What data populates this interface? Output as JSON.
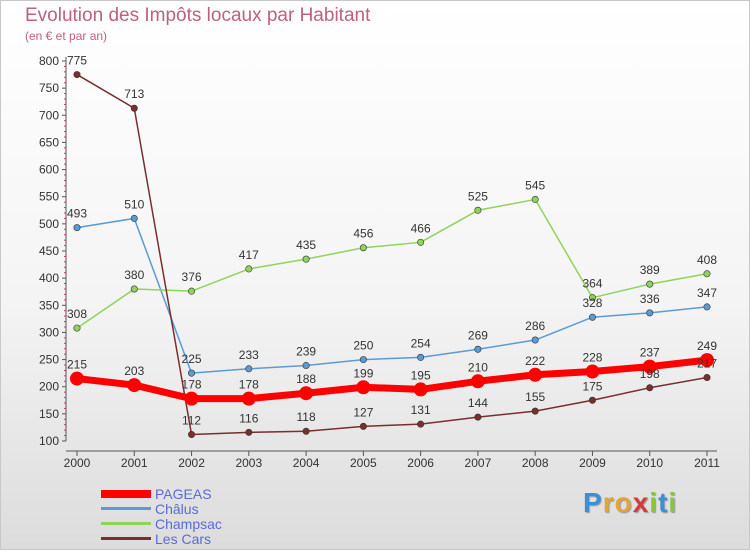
{
  "title": "Evolution des Impôts locaux par Habitant",
  "subtitle": "(en € et par an)",
  "logo_letters": [
    {
      "ch": "P",
      "color": "#3a8fd6"
    },
    {
      "ch": "r",
      "color": "#e3a33a"
    },
    {
      "ch": "o",
      "color": "#e3a33a"
    },
    {
      "ch": "x",
      "color": "#d63a3a"
    },
    {
      "ch": "i",
      "color": "#8ac43f"
    },
    {
      "ch": "t",
      "color": "#3a8fd6"
    },
    {
      "ch": "i",
      "color": "#8ac43f"
    }
  ],
  "chart_data": {
    "type": "line",
    "title": "Evolution des Impôts locaux par Habitant",
    "subtitle": "(en € et par an)",
    "xlabel": "",
    "ylabel": "",
    "x": [
      "2000",
      "2001",
      "2002",
      "2003",
      "2004",
      "2005",
      "2006",
      "2007",
      "2008",
      "2009",
      "2010",
      "2011"
    ],
    "ylim": [
      100,
      800
    ],
    "yticks": [
      100,
      150,
      200,
      250,
      300,
      350,
      400,
      450,
      500,
      550,
      600,
      650,
      700,
      750,
      800
    ],
    "legend_position": "bottom-left",
    "series": [
      {
        "name": "PAGEAS",
        "color": "#ff0000",
        "stroke": 7,
        "marker": 7,
        "values": [
          215,
          203,
          178,
          178,
          188,
          199,
          195,
          210,
          222,
          228,
          237,
          249
        ]
      },
      {
        "name": "Châlus",
        "color": "#5b9bd5",
        "stroke": 1.5,
        "marker": 3.2,
        "values": [
          493,
          510,
          225,
          233,
          239,
          250,
          254,
          269,
          286,
          328,
          336,
          347
        ]
      },
      {
        "name": "Champsac",
        "color": "#8fd45a",
        "stroke": 1.5,
        "marker": 3.2,
        "values": [
          308,
          380,
          376,
          417,
          435,
          456,
          466,
          525,
          545,
          364,
          389,
          408
        ]
      },
      {
        "name": "Les Cars",
        "color": "#7a2e2e",
        "stroke": 1.5,
        "marker": 3.2,
        "values": [
          775,
          713,
          112,
          116,
          118,
          127,
          131,
          144,
          155,
          175,
          198,
          217
        ]
      }
    ]
  }
}
